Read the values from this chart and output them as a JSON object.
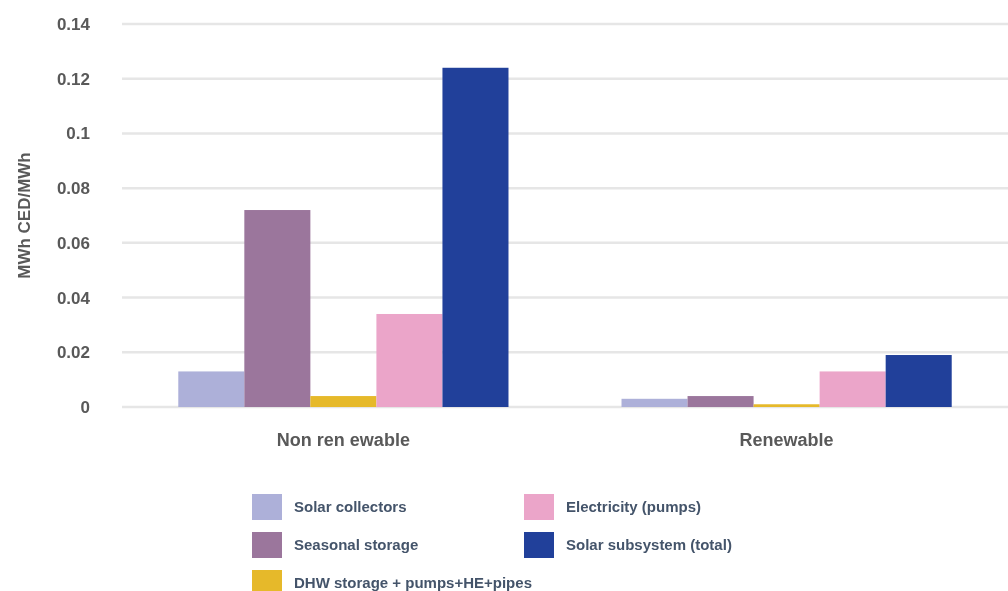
{
  "chart_data": {
    "type": "bar",
    "ylabel": "MWh CED/MWh",
    "categories": [
      "Non ren ewable",
      "Renewable"
    ],
    "series": [
      {
        "name": "Solar collectors",
        "color": "#adb0d9",
        "values": [
          0.013,
          0.003
        ]
      },
      {
        "name": "Seasonal storage",
        "color": "#9b769c",
        "values": [
          0.072,
          0.004
        ]
      },
      {
        "name": "DHW storage + pumps+HE+pipes",
        "color": "#e6b92a",
        "values": [
          0.004,
          0.001
        ]
      },
      {
        "name": "Electricity  (pumps)",
        "color": "#eba5c9",
        "values": [
          0.034,
          0.013
        ]
      },
      {
        "name": "Solar subsystem (total)",
        "color": "#21409a",
        "values": [
          0.124,
          0.019
        ]
      }
    ],
    "ylim": [
      0,
      0.14
    ],
    "yticks": [
      0,
      0.02,
      0.04,
      0.06,
      0.08,
      0.1,
      0.12,
      0.14
    ],
    "grid": "y",
    "legend": "bottom"
  }
}
